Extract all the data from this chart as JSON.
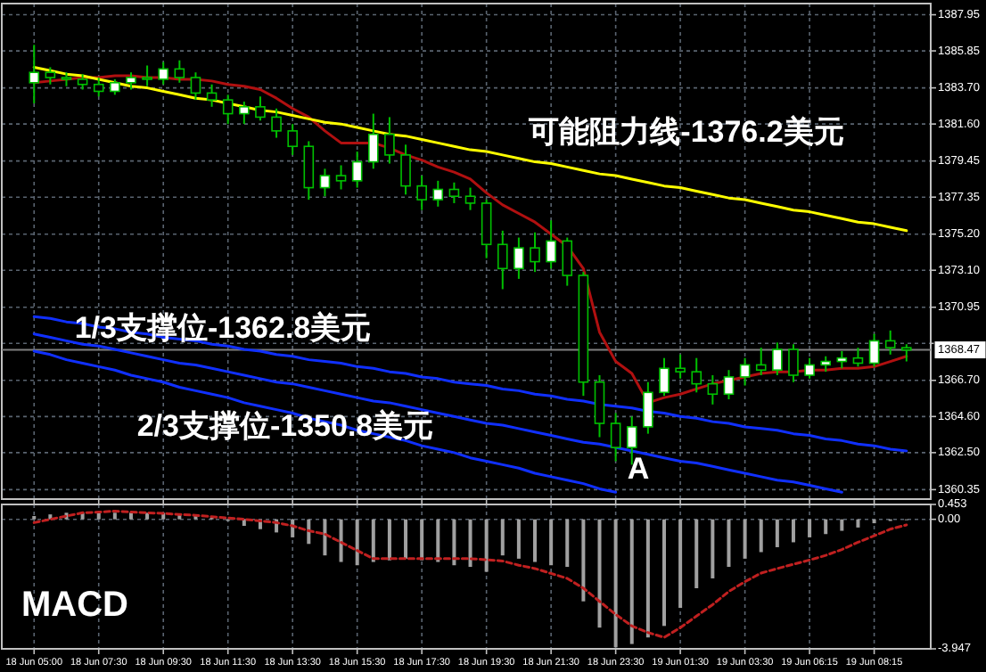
{
  "chart_data": [
    {
      "type": "candlestick",
      "color": "#00c000",
      "categories": [
        null,
        null,
        null,
        null,
        null,
        null,
        null,
        null,
        null,
        null,
        null,
        null,
        null,
        null,
        null,
        null,
        null,
        null,
        null,
        null,
        null,
        null,
        null,
        null,
        null,
        null,
        null,
        null,
        null,
        null,
        null,
        null,
        null,
        null,
        null,
        null,
        null,
        null,
        null,
        null,
        null,
        null,
        null,
        null,
        null,
        null,
        null,
        null,
        null,
        null,
        null,
        null,
        null,
        null,
        null
      ],
      "ohlc": [
        [
          1384.0,
          1386.2,
          1382.8,
          1384.6
        ],
        [
          1384.6,
          1384.9,
          1383.9,
          1384.3
        ],
        [
          1384.3,
          1384.6,
          1383.8,
          1384.2
        ],
        [
          1384.2,
          1384.5,
          1383.6,
          1383.9
        ],
        [
          1383.9,
          1384.3,
          1383.2,
          1383.5
        ],
        [
          1383.5,
          1384.2,
          1383.3,
          1384.0
        ],
        [
          1384.0,
          1384.6,
          1383.6,
          1384.3
        ],
        [
          1384.3,
          1385.0,
          1383.8,
          1384.2
        ],
        [
          1384.2,
          1385.2,
          1383.9,
          1384.8
        ],
        [
          1384.8,
          1385.3,
          1384.0,
          1384.3
        ],
        [
          1384.3,
          1384.6,
          1383.0,
          1383.4
        ],
        [
          1383.4,
          1383.9,
          1382.6,
          1383.0
        ],
        [
          1383.0,
          1383.3,
          1381.6,
          1382.2
        ],
        [
          1382.2,
          1382.9,
          1381.6,
          1382.6
        ],
        [
          1382.6,
          1383.2,
          1381.8,
          1382.0
        ],
        [
          1382.0,
          1382.5,
          1380.8,
          1381.2
        ],
        [
          1381.2,
          1381.6,
          1379.8,
          1380.3
        ],
        [
          1380.3,
          1380.6,
          1377.2,
          1377.9
        ],
        [
          1377.9,
          1379.0,
          1377.4,
          1378.6
        ],
        [
          1378.6,
          1379.2,
          1377.8,
          1378.3
        ],
        [
          1378.3,
          1380.0,
          1377.9,
          1379.4
        ],
        [
          1379.4,
          1382.2,
          1379.0,
          1381.0
        ],
        [
          1381.0,
          1382.0,
          1379.3,
          1379.8
        ],
        [
          1379.8,
          1380.4,
          1377.5,
          1378.0
        ],
        [
          1378.0,
          1378.6,
          1376.6,
          1377.2
        ],
        [
          1377.2,
          1378.3,
          1376.8,
          1377.8
        ],
        [
          1377.8,
          1378.2,
          1377.0,
          1377.4
        ],
        [
          1377.4,
          1377.9,
          1376.6,
          1377.0
        ],
        [
          1377.0,
          1377.2,
          1373.8,
          1374.6
        ],
        [
          1374.6,
          1375.4,
          1372.0,
          1373.2
        ],
        [
          1373.2,
          1375.0,
          1372.6,
          1374.4
        ],
        [
          1374.4,
          1375.3,
          1373.0,
          1373.6
        ],
        [
          1373.6,
          1376.0,
          1373.2,
          1374.8
        ],
        [
          1374.8,
          1375.0,
          1372.2,
          1372.8
        ],
        [
          1372.8,
          1373.0,
          1365.8,
          1366.6
        ],
        [
          1366.6,
          1367.0,
          1363.4,
          1364.2
        ],
        [
          1364.2,
          1364.8,
          1362.0,
          1362.8
        ],
        [
          1362.8,
          1364.6,
          1361.8,
          1364.0
        ],
        [
          1364.0,
          1366.6,
          1363.6,
          1366.0
        ],
        [
          1366.0,
          1368.0,
          1365.8,
          1367.4
        ],
        [
          1367.4,
          1368.2,
          1366.8,
          1367.2
        ],
        [
          1367.2,
          1368.0,
          1366.0,
          1366.5
        ],
        [
          1366.5,
          1367.0,
          1365.3,
          1365.9
        ],
        [
          1365.9,
          1367.3,
          1365.6,
          1366.9
        ],
        [
          1366.9,
          1368.0,
          1366.4,
          1367.6
        ],
        [
          1367.6,
          1368.6,
          1367.0,
          1367.3
        ],
        [
          1367.3,
          1368.9,
          1367.0,
          1368.5
        ],
        [
          1368.5,
          1368.8,
          1366.6,
          1367.0
        ],
        [
          1367.0,
          1368.0,
          1366.8,
          1367.6
        ],
        [
          1367.6,
          1368.1,
          1367.2,
          1367.8
        ],
        [
          1367.8,
          1368.4,
          1367.4,
          1368.0
        ],
        [
          1368.0,
          1368.6,
          1367.5,
          1367.7
        ],
        [
          1367.7,
          1369.4,
          1367.5,
          1369.0
        ],
        [
          1369.0,
          1369.6,
          1368.2,
          1368.6
        ],
        [
          1368.6,
          1368.8,
          1367.8,
          1368.47
        ]
      ],
      "series": [
        {
          "type": "line",
          "color": "#b01010",
          "values": [
            1384.0,
            1384.1,
            1384.2,
            1384.3,
            1384.3,
            1384.4,
            1384.4,
            1384.3,
            1384.3,
            1384.2,
            1384.2,
            1384.1,
            1383.9,
            1383.8,
            1383.6,
            1383.1,
            1382.5,
            1382.0,
            1381.2,
            1380.5,
            1380.5,
            1380.5,
            1380.2,
            1379.8,
            1379.5,
            1379.1,
            1378.8,
            1378.4,
            1377.6,
            1376.9,
            1376.4,
            1375.9,
            1375.2,
            1374.5,
            1373.2,
            1369.5,
            1367.8,
            1367.1,
            1365.4,
            1365.7,
            1365.9,
            1366.2,
            1366.5,
            1366.7,
            1366.9,
            1367.1,
            1367.2,
            1367.2,
            1367.3,
            1367.3,
            1367.4,
            1367.4,
            1367.5,
            1367.8,
            1368.1
          ]
        },
        {
          "type": "line",
          "color": "#ffff00",
          "values": [
            1384.9,
            1384.7,
            1384.5,
            1384.4,
            1384.2,
            1384.0,
            1383.8,
            1383.7,
            1383.5,
            1383.3,
            1383.1,
            1383.0,
            1382.8,
            1382.6,
            1382.4,
            1382.3,
            1382.1,
            1381.9,
            1381.7,
            1381.6,
            1381.4,
            1381.2,
            1381.0,
            1380.9,
            1380.7,
            1380.5,
            1380.3,
            1380.1,
            1380.0,
            1379.8,
            1379.6,
            1379.4,
            1379.3,
            1379.1,
            1378.9,
            1378.7,
            1378.6,
            1378.4,
            1378.2,
            1378.0,
            1377.9,
            1377.7,
            1377.5,
            1377.3,
            1377.2,
            1377.0,
            1376.8,
            1376.6,
            1376.5,
            1376.3,
            1376.1,
            1375.9,
            1375.8,
            1375.6,
            1375.4
          ]
        },
        {
          "type": "line",
          "color": "#1030ff",
          "values": [
            1370.4,
            1370.3,
            1370.1,
            1370.0,
            1369.8,
            1369.7,
            1369.5,
            1369.4,
            1369.2,
            1369.1,
            1369.0,
            1368.8,
            1368.7,
            1368.5,
            1368.4,
            1368.2,
            1368.1,
            1367.9,
            1367.8,
            1367.7,
            1367.5,
            1367.4,
            1367.2,
            1367.1,
            1366.9,
            1366.8,
            1366.6,
            1366.5,
            1366.4,
            1366.2,
            1366.1,
            1365.9,
            1365.8,
            1365.6,
            1365.5,
            1365.3,
            1365.2,
            1365.1,
            1364.9,
            1364.8,
            1364.6,
            1364.5,
            1364.3,
            1364.2,
            1364.0,
            1363.9,
            1363.8,
            1363.6,
            1363.5,
            1363.3,
            1363.2,
            1363.0,
            1362.9,
            1362.7,
            1362.6
          ]
        },
        {
          "type": "line",
          "color": "#1030ff",
          "values": [
            1369.4,
            1369.2,
            1369.0,
            1368.8,
            1368.7,
            1368.5,
            1368.3,
            1368.1,
            1367.9,
            1367.7,
            1367.6,
            1367.4,
            1367.2,
            1367.0,
            1366.8,
            1366.6,
            1366.5,
            1366.3,
            1366.1,
            1365.9,
            1365.7,
            1365.5,
            1365.4,
            1365.2,
            1365.0,
            1364.8,
            1364.6,
            1364.4,
            1364.2,
            1364.1,
            1363.9,
            1363.7,
            1363.5,
            1363.3,
            1363.1,
            1363.0,
            1362.8,
            1362.6,
            1362.4,
            1362.2,
            1362.0,
            1361.9,
            1361.7,
            1361.5,
            1361.3,
            1361.1,
            1360.9,
            1360.8,
            1360.6,
            1360.4,
            1360.2,
            null,
            null,
            null,
            null
          ]
        },
        {
          "type": "line",
          "color": "#1030ff",
          "values": [
            1368.4,
            1368.2,
            1367.9,
            1367.7,
            1367.5,
            1367.3,
            1367.0,
            1366.8,
            1366.6,
            1366.3,
            1366.1,
            1365.9,
            1365.7,
            1365.4,
            1365.2,
            1365.0,
            1364.8,
            1364.5,
            1364.3,
            1364.1,
            1363.8,
            1363.6,
            1363.4,
            1363.2,
            1362.9,
            1362.7,
            1362.5,
            1362.2,
            1362.0,
            1361.8,
            1361.6,
            1361.3,
            1361.1,
            1360.9,
            1360.7,
            1360.4,
            1360.2,
            null,
            null,
            null,
            null,
            null,
            null,
            null,
            null,
            null,
            null,
            null,
            null,
            null,
            null,
            null,
            null,
            null,
            null
          ]
        }
      ],
      "ref_lines": [
        {
          "axis": "y",
          "value": 1368.47,
          "label": "1368.47",
          "color": "#808080"
        }
      ],
      "annotations": [
        "可能阻力线-1376.2美元",
        "1/3支撑位-1362.8美元",
        "2/3支撑位-1350.8美元",
        "A"
      ],
      "ylim": [
        1359.8,
        1388.6
      ],
      "yticks": [
        1387.95,
        1385.85,
        {
          "value": 1383.7,
          "label": "1383.70"
        },
        {
          "value": 1381.6,
          "label": "1381.60"
        },
        1379.45,
        1377.35,
        {
          "value": 1375.2,
          "label": "1375.20"
        },
        {
          "value": 1373.1,
          "label": "1373.10"
        },
        1370.95,
        {
          "value": 1368.85,
          "label": null
        },
        {
          "value": 1366.7,
          "label": "1366.70"
        },
        {
          "value": 1364.6,
          "label": "1364.60"
        },
        {
          "value": 1362.5,
          "label": "1362.50"
        },
        1360.35
      ],
      "tick_labels": "y",
      "grid": true
    },
    {
      "type": "bar",
      "color": "#a0a0a0",
      "categories": [
        "18 Jun 05:00",
        null,
        null,
        null,
        "18 Jun 07:30",
        null,
        null,
        null,
        "18 Jun 09:30",
        null,
        null,
        null,
        "18 Jun 11:30",
        null,
        null,
        null,
        "18 Jun 13:30",
        null,
        null,
        null,
        "18 Jun 15:30",
        null,
        null,
        null,
        "18 Jun 17:30",
        null,
        null,
        null,
        "18 Jun 19:30",
        null,
        null,
        null,
        "18 Jun 21:30",
        null,
        null,
        null,
        "18 Jun 23:30",
        null,
        null,
        null,
        "19 Jun 01:30",
        null,
        null,
        null,
        "19 Jun 03:30",
        null,
        null,
        null,
        "19 Jun 06:15",
        null,
        null,
        null,
        "19 Jun 08:15",
        null,
        null
      ],
      "values": [
        0.1,
        0.15,
        0.2,
        0.2,
        0.2,
        0.2,
        0.2,
        0.2,
        0.2,
        0.15,
        0.1,
        0.05,
        -0.05,
        -0.2,
        -0.3,
        -0.4,
        -0.55,
        -0.75,
        -1.1,
        -1.3,
        -1.4,
        -1.3,
        -1.25,
        -1.2,
        -1.25,
        -1.3,
        -1.4,
        -1.45,
        -1.6,
        -1.1,
        -1.2,
        -1.3,
        -1.4,
        -1.45,
        -2.5,
        -3.3,
        -3.9,
        -3.8,
        -3.6,
        -3.25,
        -2.7,
        -2.1,
        -1.8,
        -1.45,
        -1.2,
        -1.0,
        -0.85,
        -0.7,
        -0.55,
        -0.45,
        -0.35,
        -0.25,
        -0.12,
        -0.05,
        -0.02
      ],
      "series": [
        {
          "type": "line",
          "color": "#c02020",
          "line_style": "dashed",
          "values": [
            -0.1,
            0.0,
            0.1,
            0.2,
            0.22,
            0.25,
            0.22,
            0.2,
            0.18,
            0.15,
            0.12,
            0.08,
            0.04,
            0.0,
            -0.05,
            -0.1,
            -0.2,
            -0.35,
            -0.45,
            -0.7,
            -0.95,
            -1.2,
            -1.2,
            -1.2,
            -1.2,
            -1.2,
            -1.2,
            -1.2,
            -1.23,
            -1.27,
            -1.4,
            -1.5,
            -1.65,
            -1.8,
            -2.1,
            -2.5,
            -2.9,
            -3.25,
            -3.45,
            -3.6,
            -3.3,
            -2.95,
            -2.6,
            -2.2,
            -1.9,
            -1.64,
            -1.5,
            -1.37,
            -1.24,
            -1.1,
            -0.92,
            -0.7,
            -0.5,
            -0.3,
            -0.17
          ]
        }
      ],
      "annotations": [
        "MACD"
      ],
      "ylim": [
        -3.947,
        0.453
      ],
      "yticks": [
        0.453,
        {
          "value": 0,
          "label": "0.00"
        },
        -3.947
      ],
      "grid": true
    }
  ]
}
